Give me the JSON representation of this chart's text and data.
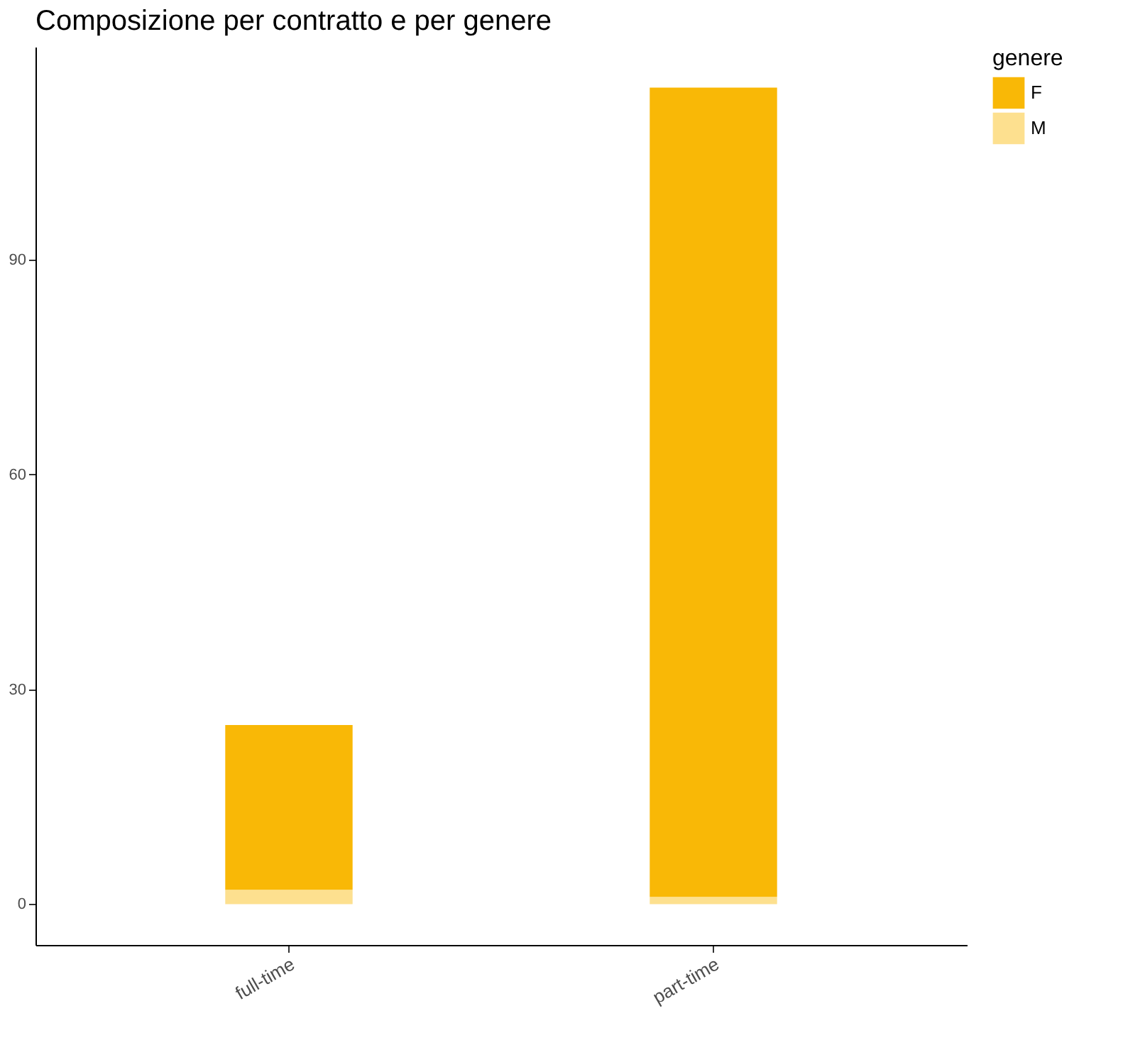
{
  "chart_data": {
    "type": "bar",
    "title": "Composizione per contratto e per genere",
    "legend_title": "genere",
    "categories": [
      "full-time",
      "part-time"
    ],
    "series": [
      {
        "name": "M",
        "color": "#fde08f",
        "values": [
          2,
          1
        ]
      },
      {
        "name": "F",
        "color": "#f9b806",
        "values": [
          23,
          113
        ]
      }
    ],
    "stacked": true,
    "ylim": [
      -5.7,
      119.7
    ],
    "yticks": [
      0,
      30,
      60,
      90
    ],
    "grid": false,
    "legend": "right"
  }
}
